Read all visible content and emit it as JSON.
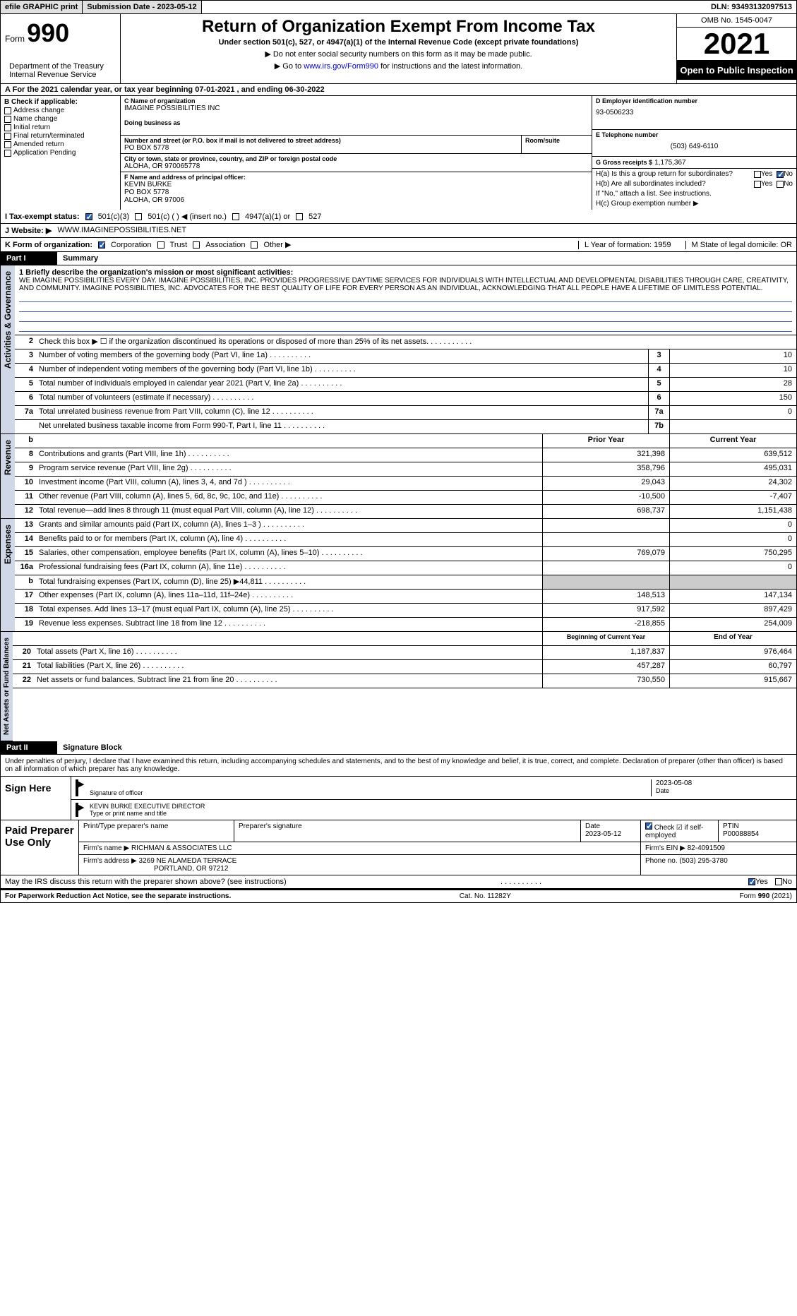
{
  "topbar": {
    "efile": "efile GRAPHIC print",
    "subdate_label": "Submission Date - ",
    "subdate": "2023-05-12",
    "dln_label": "DLN: ",
    "dln": "93493132097513"
  },
  "header": {
    "form_word": "Form",
    "form_num": "990",
    "title": "Return of Organization Exempt From Income Tax",
    "subtitle": "Under section 501(c), 527, or 4947(a)(1) of the Internal Revenue Code (except private foundations)",
    "instr1": "Do not enter social security numbers on this form as it may be made public.",
    "instr2_pre": "Go to ",
    "instr2_link": "www.irs.gov/Form990",
    "instr2_post": " for instructions and the latest information.",
    "dept": "Department of the Treasury\nInternal Revenue Service",
    "omb": "OMB No. 1545-0047",
    "year": "2021",
    "open": "Open to Public Inspection"
  },
  "period": {
    "text": "For the 2021 calendar year, or tax year beginning 07-01-2021    , and ending 06-30-2022"
  },
  "colB": {
    "label": "B Check if applicable:",
    "items": [
      "Address change",
      "Name change",
      "Initial return",
      "Final return/terminated",
      "Amended return",
      "Application Pending"
    ]
  },
  "colC": {
    "name_label": "C Name of organization",
    "name": "IMAGINE POSSIBILITIES INC",
    "dba_label": "Doing business as",
    "street_label": "Number and street (or P.O. box if mail is not delivered to street address)",
    "street": "PO BOX 5778",
    "room_label": "Room/suite",
    "city_label": "City or town, state or province, country, and ZIP or foreign postal code",
    "city": "ALOHA, OR  970065778"
  },
  "colD": {
    "label": "D Employer identification number",
    "val": "93-0506233"
  },
  "colE": {
    "label": "E Telephone number",
    "val": "(503) 649-6110"
  },
  "colG": {
    "label": "G Gross receipts $",
    "val": "1,175,367"
  },
  "colF": {
    "label": "F  Name and address of principal officer:",
    "name": "KEVIN BURKE",
    "addr1": "PO BOX 5778",
    "addr2": "ALOHA, OR  97006"
  },
  "colH": {
    "ha_label": "H(a)  Is this a group return for subordinates?",
    "hb_label": "H(b)  Are all subordinates included?",
    "hb_note": "If \"No,\" attach a list. See instructions.",
    "hc_label": "H(c)  Group exemption number ▶",
    "yes": "Yes",
    "no": "No"
  },
  "rowI": {
    "label": "I  Tax-exempt status:",
    "opt1": "501(c)(3)",
    "opt2": "501(c) (  ) ◀ (insert no.)",
    "opt3": "4947(a)(1) or",
    "opt4": "527"
  },
  "rowJ": {
    "label": "J  Website: ▶",
    "val": "WWW.IMAGINEPOSSIBILITIES.NET"
  },
  "rowK": {
    "label": "K Form of organization:",
    "opts": [
      "Corporation",
      "Trust",
      "Association",
      "Other ▶"
    ],
    "L": "L Year of formation: 1959",
    "M": "M State of legal domicile: OR"
  },
  "part1": {
    "tab": "Part I",
    "title": "Summary"
  },
  "vtabs": {
    "act": "Activities & Governance",
    "rev": "Revenue",
    "exp": "Expenses",
    "net": "Net Assets or Fund Balances"
  },
  "mission": {
    "label": "1   Briefly describe the organization's mission or most significant activities:",
    "text": "WE IMAGINE POSSIBILITIES EVERY DAY. IMAGINE POSSIBILITIES, INC. PROVIDES PROGRESSIVE DAYTIME SERVICES FOR INDIVIDUALS WITH INTELLECTUAL AND DEVELOPMENTAL DISABILITIES THROUGH CARE, CREATIVITY, AND COMMUNITY. IMAGINE POSSIBILITIES, INC. ADVOCATES FOR THE BEST QUALITY OF LIFE FOR EVERY PERSON AS AN INDIVIDUAL, ACKNOWLEDGING THAT ALL PEOPLE HAVE A LIFETIME OF LIMITLESS POTENTIAL."
  },
  "lines_gov": [
    {
      "n": "2",
      "t": "Check this box ▶ ☐  if the organization discontinued its operations or disposed of more than 25% of its net assets.",
      "box": "",
      "v": ""
    },
    {
      "n": "3",
      "t": "Number of voting members of the governing body (Part VI, line 1a)",
      "box": "3",
      "v": "10"
    },
    {
      "n": "4",
      "t": "Number of independent voting members of the governing body (Part VI, line 1b)",
      "box": "4",
      "v": "10"
    },
    {
      "n": "5",
      "t": "Total number of individuals employed in calendar year 2021 (Part V, line 2a)",
      "box": "5",
      "v": "28"
    },
    {
      "n": "6",
      "t": "Total number of volunteers (estimate if necessary)",
      "box": "6",
      "v": "150"
    },
    {
      "n": "7a",
      "t": "Total unrelated business revenue from Part VIII, column (C), line 12",
      "box": "7a",
      "v": "0"
    },
    {
      "n": "",
      "t": "Net unrelated business taxable income from Form 990-T, Part I, line 11",
      "box": "7b",
      "v": ""
    }
  ],
  "rev_head": {
    "b": "b",
    "prior": "Prior Year",
    "current": "Current Year"
  },
  "lines_rev": [
    {
      "n": "8",
      "t": "Contributions and grants (Part VIII, line 1h)",
      "p": "321,398",
      "c": "639,512"
    },
    {
      "n": "9",
      "t": "Program service revenue (Part VIII, line 2g)",
      "p": "358,796",
      "c": "495,031"
    },
    {
      "n": "10",
      "t": "Investment income (Part VIII, column (A), lines 3, 4, and 7d )",
      "p": "29,043",
      "c": "24,302"
    },
    {
      "n": "11",
      "t": "Other revenue (Part VIII, column (A), lines 5, 6d, 8c, 9c, 10c, and 11e)",
      "p": "-10,500",
      "c": "-7,407"
    },
    {
      "n": "12",
      "t": "Total revenue—add lines 8 through 11 (must equal Part VIII, column (A), line 12)",
      "p": "698,737",
      "c": "1,151,438"
    }
  ],
  "lines_exp": [
    {
      "n": "13",
      "t": "Grants and similar amounts paid (Part IX, column (A), lines 1–3 )",
      "p": "",
      "c": "0"
    },
    {
      "n": "14",
      "t": "Benefits paid to or for members (Part IX, column (A), line 4)",
      "p": "",
      "c": "0"
    },
    {
      "n": "15",
      "t": "Salaries, other compensation, employee benefits (Part IX, column (A), lines 5–10)",
      "p": "769,079",
      "c": "750,295"
    },
    {
      "n": "16a",
      "t": "Professional fundraising fees (Part IX, column (A), line 11e)",
      "p": "",
      "c": "0"
    },
    {
      "n": "b",
      "t": "Total fundraising expenses (Part IX, column (D), line 25) ▶44,811",
      "p": "shade",
      "c": "shade"
    },
    {
      "n": "17",
      "t": "Other expenses (Part IX, column (A), lines 11a–11d, 11f–24e)",
      "p": "148,513",
      "c": "147,134"
    },
    {
      "n": "18",
      "t": "Total expenses. Add lines 13–17 (must equal Part IX, column (A), line 25)",
      "p": "917,592",
      "c": "897,429"
    },
    {
      "n": "19",
      "t": "Revenue less expenses. Subtract line 18 from line 12",
      "p": "-218,855",
      "c": "254,009"
    }
  ],
  "net_head": {
    "prior": "Beginning of Current Year",
    "current": "End of Year"
  },
  "lines_net": [
    {
      "n": "20",
      "t": "Total assets (Part X, line 16)",
      "p": "1,187,837",
      "c": "976,464"
    },
    {
      "n": "21",
      "t": "Total liabilities (Part X, line 26)",
      "p": "457,287",
      "c": "60,797"
    },
    {
      "n": "22",
      "t": "Net assets or fund balances. Subtract line 21 from line 20",
      "p": "730,550",
      "c": "915,667"
    }
  ],
  "part2": {
    "tab": "Part II",
    "title": "Signature Block"
  },
  "sig": {
    "text": "Under penalties of perjury, I declare that I have examined this return, including accompanying schedules and statements, and to the best of my knowledge and belief, it is true, correct, and complete. Declaration of preparer (other than officer) is based on all information of which preparer has any knowledge.",
    "sign_here": "Sign Here",
    "sig_officer": "Signature of officer",
    "date": "2023-05-08",
    "name": "KEVIN BURKE EXECUTIVE DIRECTOR",
    "name_label": "Type or print name and title"
  },
  "prep": {
    "label": "Paid Preparer Use Only",
    "h1": "Print/Type preparer's name",
    "h2": "Preparer's signature",
    "h3": "Date",
    "h3v": "2023-05-12",
    "h4": "Check ☑ if self-employed",
    "h5": "PTIN",
    "h5v": "P00088854",
    "firm_label": "Firm's name    ▶",
    "firm": "RICHMAN & ASSOCIATES LLC",
    "ein_label": "Firm's EIN ▶",
    "ein": "82-4091509",
    "addr_label": "Firm's address ▶",
    "addr1": "3269 NE ALAMEDA TERRACE",
    "addr2": "PORTLAND, OR  97212",
    "phone_label": "Phone no.",
    "phone": "(503) 295-3780"
  },
  "may": {
    "text": "May the IRS discuss this return with the preparer shown above? (see instructions)",
    "yes": "Yes",
    "no": "No"
  },
  "footer": {
    "left": "For Paperwork Reduction Act Notice, see the separate instructions.",
    "center": "Cat. No. 11282Y",
    "right": "Form 990 (2021)"
  },
  "colors": {
    "link": "#0000cc",
    "underline": "#4060aa",
    "vtab_bg": "#d0d8e8",
    "shade": "#cccccc"
  }
}
